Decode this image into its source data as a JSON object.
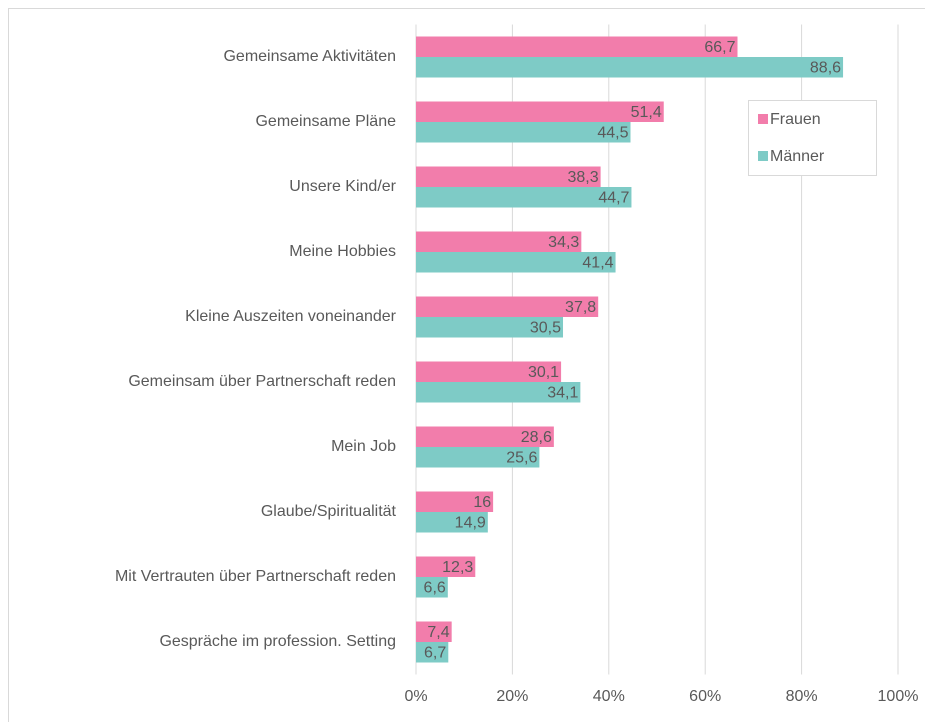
{
  "chart_data": {
    "type": "hbar",
    "categories": [
      "Gemeinsame Aktivitäten",
      "Gemeinsame Pläne",
      "Unsere Kind/er",
      "Meine Hobbies",
      "Kleine Auszeiten voneinander",
      "Gemeinsam über Partnerschaft reden",
      "Mein Job",
      "Glaube/Spiritualität",
      "Mit Vertrauten über Partnerschaft reden",
      "Gespräche im profession. Setting"
    ],
    "series": [
      {
        "name": "Frauen",
        "color": "#f27dab",
        "values": [
          66.7,
          51.4,
          38.3,
          34.3,
          37.8,
          30.1,
          28.6,
          16,
          12.3,
          7.4
        ],
        "value_labels": [
          "66,7",
          "51,4",
          "38,3",
          "34,3",
          "37,8",
          "30,1",
          "28,6",
          "16",
          "12,3",
          "7,4"
        ]
      },
      {
        "name": "Männer",
        "color": "#7ecbc6",
        "values": [
          88.6,
          44.5,
          44.7,
          41.4,
          30.5,
          34.1,
          25.6,
          14.9,
          6.6,
          6.7
        ],
        "value_labels": [
          "88,6",
          "44,5",
          "44,7",
          "41,4",
          "30,5",
          "34,1",
          "25,6",
          "14,9",
          "6,6",
          "6,7"
        ]
      }
    ],
    "xlim": [
      0,
      100
    ],
    "xticks": [
      {
        "value": 0,
        "label": "0%"
      },
      {
        "value": 20,
        "label": "20%"
      },
      {
        "value": 40,
        "label": "40%"
      },
      {
        "value": 60,
        "label": "60%"
      },
      {
        "value": 80,
        "label": "80%"
      },
      {
        "value": 100,
        "label": "100%"
      }
    ],
    "grid": true,
    "legend": "upper right"
  }
}
